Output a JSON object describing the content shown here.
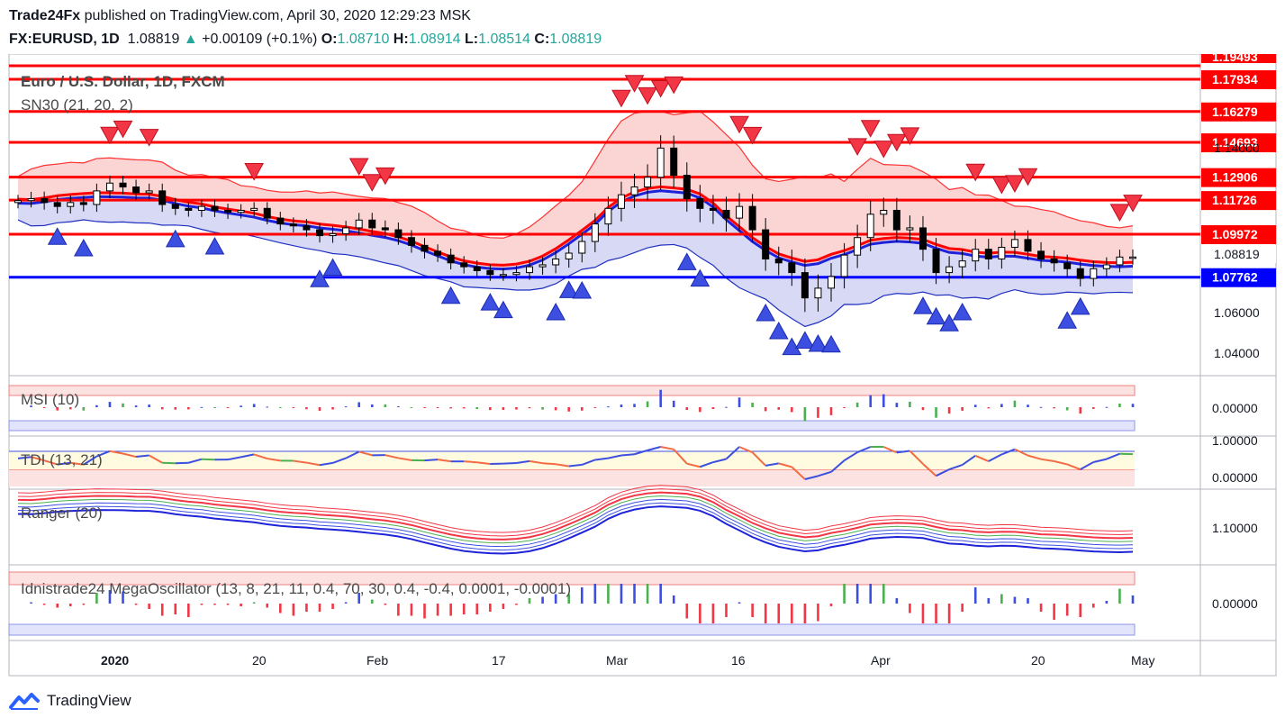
{
  "header": {
    "publisher": "Trade24Fx",
    "published_on": "published on TradingView.com, April 30, 2020 12:29:23 MSK",
    "symbol": "FX:EURUSD, 1D",
    "last": "1.08819",
    "change": "+0.00109 (+0.1%)",
    "o_label": "O:",
    "o": "1.08710",
    "h_label": "H:",
    "h": "1.08914",
    "l_label": "L:",
    "l": "1.08514",
    "c_label": "C:",
    "c": "1.08819"
  },
  "footer": {
    "brand": "TradingView"
  },
  "colors": {
    "up": "#26a69a",
    "resistance": "#ff0000",
    "support": "#0000ff",
    "sell_marker": "#f23645",
    "buy_marker": "#3d4fe0",
    "band_red": "#f9c6c6",
    "band_blue": "#c9ccf2"
  },
  "chart_data": [
    {
      "type": "candlestick",
      "title": "Euro / U.S. Dollar, 1D, FXCM",
      "indicator": "SN30 (21, 20, 2)",
      "x_tick_labels": [
        "2020",
        "20",
        "Feb",
        "17",
        "Mar",
        "16",
        "Apr",
        "20",
        "May"
      ],
      "y_tick_labels": [
        "1.14000",
        "1.06000",
        "1.04000"
      ],
      "ylim": [
        1.02,
        1.19
      ],
      "horizontal_levels": [
        {
          "value": 1.17934,
          "label": "1.17934",
          "color": "#ff0000"
        },
        {
          "value": 1.16279,
          "label": "1.16279",
          "color": "#ff0000"
        },
        {
          "value": 1.14693,
          "label": "1.14693",
          "color": "#ff0000"
        },
        {
          "value": 1.12906,
          "label": "1.12906",
          "color": "#ff0000"
        },
        {
          "value": 1.11726,
          "label": "1.11726",
          "color": "#ff0000"
        },
        {
          "value": 1.09972,
          "label": "1.09972",
          "color": "#ff0000"
        },
        {
          "value": 1.07762,
          "label": "1.07762",
          "color": "#0000ff"
        }
      ],
      "last_price_label": "1.08819",
      "top_clipped_label": "1.19493",
      "candles_close": [
        1.117,
        1.118,
        1.116,
        1.114,
        1.116,
        1.115,
        1.122,
        1.126,
        1.124,
        1.121,
        1.122,
        1.115,
        1.113,
        1.112,
        1.114,
        1.112,
        1.111,
        1.112,
        1.113,
        1.108,
        1.105,
        1.104,
        1.102,
        1.099,
        1.1,
        1.103,
        1.107,
        1.103,
        1.102,
        1.098,
        1.094,
        1.091,
        1.089,
        1.085,
        1.083,
        1.081,
        1.079,
        1.079,
        1.08,
        1.083,
        1.084,
        1.087,
        1.09,
        1.096,
        1.105,
        1.113,
        1.12,
        1.124,
        1.129,
        1.144,
        1.13,
        1.118,
        1.113,
        1.112,
        1.108,
        1.114,
        1.102,
        1.087,
        1.085,
        1.08,
        1.067,
        1.072,
        1.078,
        1.089,
        1.098,
        1.11,
        1.112,
        1.102,
        1.103,
        1.092,
        1.08,
        1.083,
        1.086,
        1.092,
        1.087,
        1.093,
        1.097,
        1.091,
        1.087,
        1.085,
        1.082,
        1.077,
        1.082,
        1.084,
        1.088,
        1.088
      ]
    },
    {
      "type": "histogram",
      "title": "MSI (10)",
      "y_tick_labels": [
        "0.00000"
      ]
    },
    {
      "type": "line",
      "title": "TDI (13, 21)",
      "y_tick_labels": [
        "1.00000",
        "0.00000"
      ]
    },
    {
      "type": "line",
      "title": "Ranger (20)",
      "y_tick_labels": [
        "1.10000"
      ]
    },
    {
      "type": "histogram",
      "title": "Idnistrade24 MegaOscillator (13, 8, 21, 11, 0.4, 70, 30, 0.4, -0.4, 0.0001, -0.0001)",
      "y_tick_labels": [
        "0.00000"
      ]
    }
  ]
}
